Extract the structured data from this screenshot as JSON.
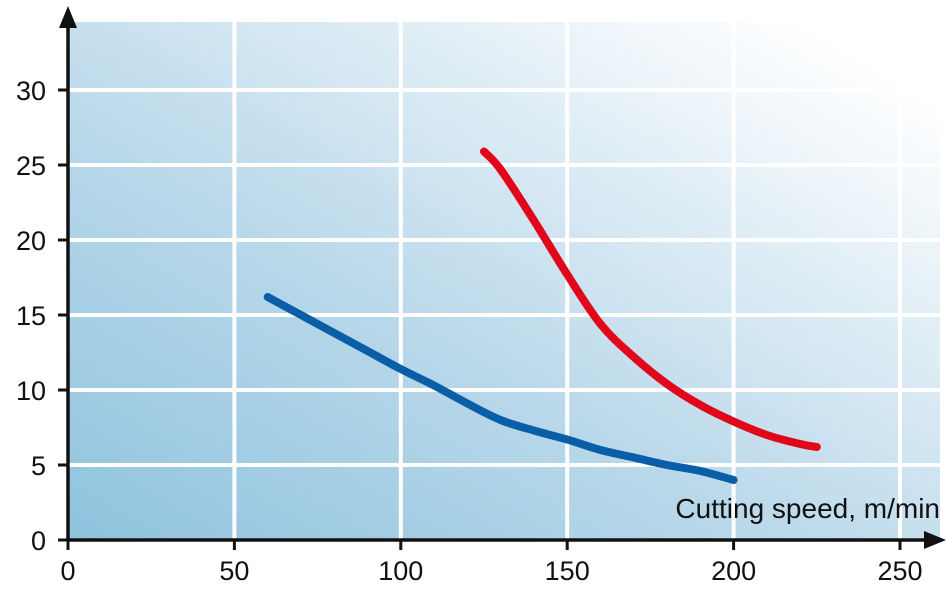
{
  "chart_data": {
    "type": "line",
    "title": "",
    "xlabel": "Cutting speed, m/min",
    "ylabel": "",
    "xlim": [
      0,
      250
    ],
    "ylim": [
      0,
      30
    ],
    "x_ticks": [
      0,
      50,
      100,
      150,
      200,
      250
    ],
    "y_ticks": [
      0,
      5,
      10,
      15,
      20,
      25,
      30
    ],
    "x_tick_labels": [
      "0",
      "50",
      "100",
      "150",
      "200",
      "250"
    ],
    "y_tick_labels": [
      "0",
      "5",
      "10",
      "15",
      "20",
      "25",
      "30"
    ],
    "grid": true,
    "legend": "none",
    "background": {
      "gradient_from": "#8fc3de",
      "gradient_to": "#ffffff"
    },
    "series": [
      {
        "color": "#0a5ea8",
        "points": [
          [
            60,
            16.2
          ],
          [
            70,
            15.0
          ],
          [
            80,
            13.8
          ],
          [
            90,
            12.6
          ],
          [
            100,
            11.4
          ],
          [
            110,
            10.3
          ],
          [
            120,
            9.1
          ],
          [
            130,
            8.0
          ],
          [
            140,
            7.3
          ],
          [
            150,
            6.7
          ],
          [
            160,
            6.0
          ],
          [
            170,
            5.5
          ],
          [
            180,
            5.0
          ],
          [
            190,
            4.6
          ],
          [
            200,
            4.0
          ]
        ]
      },
      {
        "color": "#e2061b",
        "points": [
          [
            125,
            25.9
          ],
          [
            130,
            24.7
          ],
          [
            140,
            21.3
          ],
          [
            150,
            17.7
          ],
          [
            160,
            14.4
          ],
          [
            170,
            12.2
          ],
          [
            180,
            10.4
          ],
          [
            190,
            9.0
          ],
          [
            200,
            7.9
          ],
          [
            210,
            7.0
          ],
          [
            220,
            6.4
          ],
          [
            225,
            6.2
          ]
        ]
      }
    ]
  }
}
